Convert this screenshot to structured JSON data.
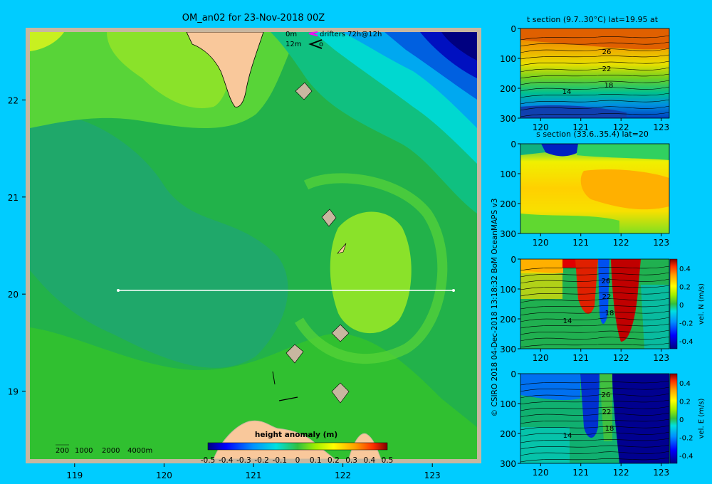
{
  "title": "OM_an02 for 23-Nov-2018 00Z",
  "colors": {
    "background": "#00ccff",
    "land": "#f9c89b",
    "frame": "#c8b7a0",
    "drifter": "#ff00ff",
    "section_line": "#ffffff"
  },
  "legend": {
    "depth_0": "0m",
    "depth_12": "12m",
    "drifter_text": "drifters 72h@12h",
    "drifter_icon": "drifter-arrow-icon",
    "velocity_icon": "velocity-arrow-icon"
  },
  "bathymetry_scale": {
    "labels": [
      "200",
      "1000",
      "2000",
      "4000m"
    ]
  },
  "credits": {
    "vertical_text": "© CSIRO 2018   04-Dec-2018 13:18:32 BoM OceanMAPS v3"
  },
  "colorbar": {
    "title": "height anomaly (m)",
    "ticks": [
      "-0.5",
      "-0.4",
      "-0.3",
      "-0.2",
      "-0.1",
      "0",
      "0.1",
      "0.2",
      "0.3",
      "0.4",
      "0.5"
    ]
  },
  "chart_data": [
    {
      "type": "heatmap",
      "title": "OM_an02 for 23-Nov-2018 00Z",
      "variable": "sea surface height anomaly",
      "units": "m",
      "xlim": [
        118.5,
        123.5
      ],
      "ylim": [
        18.3,
        22.7
      ],
      "x_ticks": [
        "119",
        "120",
        "121",
        "122",
        "123"
      ],
      "y_ticks": [
        "19",
        "20",
        "21",
        "22"
      ],
      "value_range": [
        -0.5,
        0.5
      ],
      "section_line": {
        "lat": 20,
        "lon": [
          119.5,
          123.2
        ]
      },
      "field_levels_m": [
        {
          "region": "north-east corner",
          "value": -0.5
        },
        {
          "region": "east gradient band",
          "value": -0.25
        },
        {
          "region": "central basin",
          "value": 0.0
        },
        {
          "region": "eddy near 122E 20.3N",
          "value": 0.1
        },
        {
          "region": "north near Taiwan strait",
          "value": 0.12
        }
      ]
    },
    {
      "type": "heatmap",
      "title": "t section (9.7..30°C) lat=19.95 at",
      "xlim": [
        119.5,
        123.2
      ],
      "ylim": [
        300,
        0
      ],
      "x_ticks": [
        "120",
        "121",
        "122",
        "123"
      ],
      "y_ticks": [
        "0",
        "100",
        "200",
        "300"
      ],
      "contour_labels": [
        "26",
        "22",
        "18",
        "14"
      ]
    },
    {
      "type": "heatmap",
      "title": "s section (33.6..35.4) lat=20",
      "xlim": [
        119.5,
        123.2
      ],
      "ylim": [
        300,
        0
      ],
      "x_ticks": [
        "120",
        "121",
        "122",
        "123"
      ],
      "y_ticks": [
        "0",
        "100",
        "200",
        "300"
      ]
    },
    {
      "type": "heatmap",
      "title": "",
      "xlim": [
        119.5,
        123.2
      ],
      "ylim": [
        300,
        0
      ],
      "x_ticks": [
        "120",
        "121",
        "122",
        "123"
      ],
      "y_ticks": [
        "0",
        "100",
        "200",
        "300"
      ],
      "contour_labels": [
        "26",
        "22",
        "18",
        "14"
      ],
      "colorbar_label": "vel. N (m/s)",
      "colorbar_ticks": [
        "0.4",
        "0.2",
        "0",
        "-0.2",
        "-0.4"
      ]
    },
    {
      "type": "heatmap",
      "title": "",
      "xlim": [
        119.5,
        123.2
      ],
      "ylim": [
        300,
        0
      ],
      "x_ticks": [
        "120",
        "121",
        "122",
        "123"
      ],
      "y_ticks": [
        "0",
        "100",
        "200",
        "300"
      ],
      "contour_labels": [
        "26",
        "22",
        "18",
        "14"
      ],
      "colorbar_label": "vel. E (m/s)",
      "colorbar_ticks": [
        "0.4",
        "0.2",
        "0",
        "-0.2",
        "-0.4"
      ]
    }
  ]
}
